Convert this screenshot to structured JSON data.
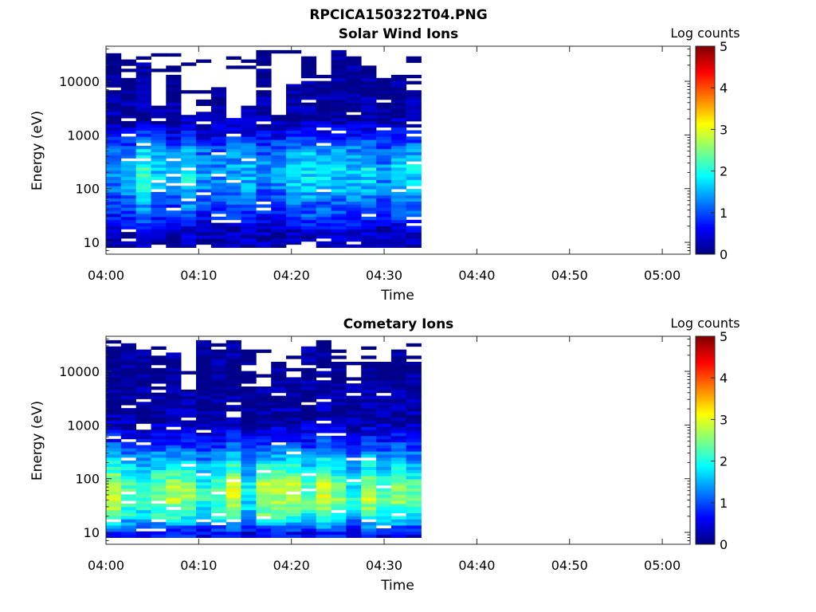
{
  "figure": {
    "title": "RPCICA150322T04.PNG"
  },
  "colorbar": {
    "colormap": "jet",
    "colors": [
      "#00007f",
      "#0000ff",
      "#007fff",
      "#00ffff",
      "#7fff7f",
      "#ffff00",
      "#ff7f00",
      "#ff0000",
      "#7f0000"
    ]
  },
  "chart_data": [
    {
      "type": "heatmap",
      "title": "Solar Wind Ions",
      "xlabel": "Time",
      "ylabel": "Energy (eV)",
      "yscale": "log",
      "xlim": [
        "04:00",
        "05:03"
      ],
      "ylim": [
        6,
        45000
      ],
      "xticks": [
        "04:00",
        "04:10",
        "04:20",
        "04:30",
        "04:40",
        "04:50",
        "05:00"
      ],
      "yticks": [
        10,
        100,
        1000,
        10000
      ],
      "yticklabels": [
        "10",
        "100",
        "1000",
        "10000"
      ],
      "data_time_range": [
        "04:00",
        "04:34"
      ],
      "colorbar": {
        "label": "Log counts",
        "range": [
          0,
          5
        ],
        "ticks": [
          "0",
          "1",
          "2",
          "3",
          "4",
          "5"
        ]
      },
      "profile": {
        "energy": [
          15,
          30,
          60,
          120,
          250,
          500,
          1000,
          2000,
          5000
        ],
        "log_counts": [
          0.3,
          0.9,
          1.2,
          1.6,
          1.7,
          1.4,
          0.7,
          0.2,
          0.1
        ]
      },
      "grid": false
    },
    {
      "type": "heatmap",
      "title": "Cometary Ions",
      "xlabel": "Time",
      "ylabel": "Energy (eV)",
      "yscale": "log",
      "xlim": [
        "04:00",
        "05:03"
      ],
      "ylim": [
        6,
        45000
      ],
      "xticks": [
        "04:00",
        "04:10",
        "04:20",
        "04:30",
        "04:40",
        "04:50",
        "05:00"
      ],
      "yticks": [
        10,
        100,
        1000,
        10000
      ],
      "yticklabels": [
        "10",
        "100",
        "1000",
        "10000"
      ],
      "data_time_range": [
        "04:00",
        "04:34"
      ],
      "colorbar": {
        "label": "Log counts",
        "range": [
          0,
          5
        ],
        "ticks": [
          "0",
          "1",
          "2",
          "3",
          "4",
          "5"
        ]
      },
      "profile": {
        "energy": [
          10,
          20,
          40,
          80,
          160,
          300,
          600,
          1200,
          5000
        ],
        "log_counts": [
          0.6,
          1.9,
          2.4,
          2.3,
          1.7,
          1.2,
          0.6,
          0.2,
          0.1
        ]
      },
      "grid": false
    }
  ]
}
